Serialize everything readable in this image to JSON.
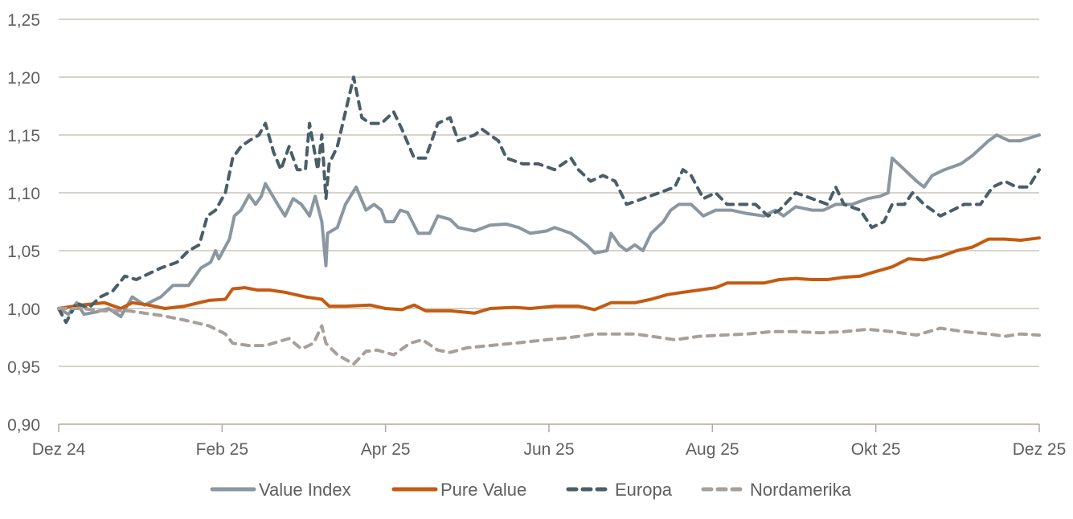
{
  "chart_data": {
    "type": "line",
    "title": "",
    "xlabel": "",
    "ylabel": "",
    "x_unit": "months since Dez 24",
    "xlim": [
      0,
      12
    ],
    "ylim": [
      0.9,
      1.25
    ],
    "y_ticks": [
      "0,90",
      "0,95",
      "1,00",
      "1,05",
      "1,10",
      "1,15",
      "1,20",
      "1,25"
    ],
    "y_tick_values": [
      0.9,
      0.95,
      1.0,
      1.05,
      1.1,
      1.15,
      1.2,
      1.25
    ],
    "x_ticks": [
      "Dez 24",
      "Feb 25",
      "Apr 25",
      "Jun 25",
      "Aug 25",
      "Okt 25",
      "Dez 25"
    ],
    "x_tick_values": [
      0,
      2,
      4,
      6,
      8,
      10,
      12
    ],
    "grid": true,
    "legend_position": "bottom-center",
    "series": [
      {
        "name": "Value Index",
        "color": "#8a97a1",
        "dash": false,
        "x": [
          0,
          0.12,
          0.22,
          0.31,
          0.46,
          0.61,
          0.76,
          0.9,
          1.05,
          1.25,
          1.4,
          1.59,
          1.74,
          1.86,
          1.92,
          1.96,
          2.09,
          2.15,
          2.23,
          2.33,
          2.41,
          2.48,
          2.53,
          2.68,
          2.77,
          2.87,
          2.97,
          3.07,
          3.14,
          3.22,
          3.27,
          3.29,
          3.41,
          3.51,
          3.64,
          3.76,
          3.86,
          3.95,
          4.0,
          4.1,
          4.18,
          4.27,
          4.4,
          4.54,
          4.64,
          4.79,
          4.89,
          5.09,
          5.28,
          5.48,
          5.63,
          5.77,
          5.97,
          6.07,
          6.27,
          6.46,
          6.56,
          6.71,
          6.76,
          6.86,
          6.95,
          7.05,
          7.15,
          7.25,
          7.4,
          7.49,
          7.59,
          7.74,
          7.89,
          8.04,
          8.23,
          8.43,
          8.63,
          8.77,
          8.87,
          9.02,
          9.22,
          9.36,
          9.51,
          9.71,
          9.9,
          10.05,
          10.15,
          10.2,
          10.35,
          10.5,
          10.59,
          10.69,
          10.84,
          11.04,
          11.18,
          11.38,
          11.48,
          11.63,
          11.77,
          12
        ],
        "y": [
          1.0,
          0.995,
          1.005,
          0.995,
          0.997,
          1.0,
          0.993,
          1.01,
          1.003,
          1.01,
          1.02,
          1.02,
          1.035,
          1.04,
          1.05,
          1.043,
          1.06,
          1.08,
          1.085,
          1.098,
          1.09,
          1.097,
          1.108,
          1.09,
          1.08,
          1.095,
          1.09,
          1.08,
          1.097,
          1.075,
          1.037,
          1.065,
          1.07,
          1.09,
          1.105,
          1.085,
          1.09,
          1.085,
          1.075,
          1.075,
          1.085,
          1.083,
          1.065,
          1.065,
          1.08,
          1.077,
          1.07,
          1.067,
          1.072,
          1.073,
          1.07,
          1.065,
          1.067,
          1.07,
          1.065,
          1.055,
          1.048,
          1.05,
          1.065,
          1.055,
          1.05,
          1.055,
          1.05,
          1.065,
          1.075,
          1.085,
          1.09,
          1.09,
          1.08,
          1.085,
          1.085,
          1.082,
          1.08,
          1.085,
          1.08,
          1.088,
          1.085,
          1.085,
          1.09,
          1.09,
          1.095,
          1.097,
          1.1,
          1.13,
          1.12,
          1.11,
          1.105,
          1.115,
          1.12,
          1.125,
          1.132,
          1.145,
          1.15,
          1.145,
          1.145,
          1.15
        ]
      },
      {
        "name": "Pure Value",
        "color": "#c55a11",
        "dash": false,
        "x": [
          0,
          0.27,
          0.56,
          0.76,
          0.9,
          1.1,
          1.3,
          1.54,
          1.84,
          2.04,
          2.13,
          2.28,
          2.43,
          2.58,
          2.77,
          3.02,
          3.22,
          3.31,
          3.51,
          3.81,
          4.0,
          4.2,
          4.35,
          4.49,
          4.79,
          5.09,
          5.28,
          5.58,
          5.77,
          6.07,
          6.36,
          6.56,
          6.76,
          7.05,
          7.25,
          7.45,
          7.64,
          7.84,
          8.04,
          8.18,
          8.43,
          8.63,
          8.82,
          9.02,
          9.22,
          9.41,
          9.61,
          9.81,
          10.0,
          10.2,
          10.4,
          10.59,
          10.79,
          10.99,
          11.18,
          11.38,
          11.58,
          11.77,
          12
        ],
        "y": [
          1.0,
          1.003,
          1.005,
          1.0,
          1.005,
          1.003,
          1.0,
          1.002,
          1.007,
          1.008,
          1.017,
          1.018,
          1.016,
          1.016,
          1.014,
          1.01,
          1.008,
          1.002,
          1.002,
          1.003,
          1.0,
          0.999,
          1.003,
          0.998,
          0.998,
          0.996,
          1.0,
          1.001,
          1.0,
          1.002,
          1.002,
          0.999,
          1.005,
          1.005,
          1.008,
          1.012,
          1.014,
          1.016,
          1.018,
          1.022,
          1.022,
          1.022,
          1.025,
          1.026,
          1.025,
          1.025,
          1.027,
          1.028,
          1.032,
          1.036,
          1.043,
          1.042,
          1.045,
          1.05,
          1.053,
          1.06,
          1.06,
          1.059,
          1.061
        ]
      },
      {
        "name": "Europa",
        "color": "#4a5e68",
        "dash": true,
        "x": [
          0,
          0.09,
          0.22,
          0.36,
          0.51,
          0.66,
          0.81,
          0.95,
          1.1,
          1.25,
          1.45,
          1.59,
          1.72,
          1.82,
          1.92,
          2.04,
          2.13,
          2.23,
          2.33,
          2.45,
          2.53,
          2.63,
          2.72,
          2.82,
          2.92,
          3.02,
          3.07,
          3.17,
          3.22,
          3.27,
          3.31,
          3.41,
          3.51,
          3.61,
          3.71,
          3.81,
          3.95,
          4.1,
          4.2,
          4.35,
          4.49,
          4.64,
          4.79,
          4.89,
          5.09,
          5.18,
          5.38,
          5.48,
          5.68,
          5.87,
          6.07,
          6.27,
          6.36,
          6.51,
          6.66,
          6.81,
          6.95,
          7.15,
          7.35,
          7.54,
          7.64,
          7.74,
          7.89,
          8.04,
          8.18,
          8.33,
          8.53,
          8.68,
          8.82,
          9.02,
          9.22,
          9.41,
          9.51,
          9.61,
          9.81,
          9.95,
          10.1,
          10.2,
          10.35,
          10.45,
          10.59,
          10.79,
          10.94,
          11.08,
          11.28,
          11.43,
          11.58,
          11.72,
          11.87,
          12
        ],
        "y": [
          1.0,
          0.988,
          1.005,
          1.0,
          1.01,
          1.015,
          1.028,
          1.025,
          1.03,
          1.035,
          1.04,
          1.05,
          1.055,
          1.08,
          1.085,
          1.1,
          1.13,
          1.14,
          1.145,
          1.15,
          1.16,
          1.135,
          1.12,
          1.14,
          1.12,
          1.12,
          1.16,
          1.12,
          1.15,
          1.095,
          1.125,
          1.14,
          1.17,
          1.2,
          1.165,
          1.16,
          1.16,
          1.17,
          1.155,
          1.13,
          1.13,
          1.16,
          1.165,
          1.145,
          1.15,
          1.155,
          1.145,
          1.13,
          1.125,
          1.125,
          1.12,
          1.13,
          1.12,
          1.11,
          1.115,
          1.11,
          1.09,
          1.095,
          1.1,
          1.105,
          1.12,
          1.115,
          1.095,
          1.1,
          1.09,
          1.09,
          1.09,
          1.08,
          1.085,
          1.1,
          1.095,
          1.09,
          1.105,
          1.09,
          1.085,
          1.07,
          1.075,
          1.09,
          1.09,
          1.1,
          1.09,
          1.08,
          1.085,
          1.09,
          1.09,
          1.105,
          1.11,
          1.105,
          1.105,
          1.12
        ]
      },
      {
        "name": "Nordamerika",
        "color": "#a89f9a",
        "dash": true,
        "x": [
          0,
          0.27,
          0.56,
          0.86,
          1.05,
          1.25,
          1.54,
          1.84,
          2.04,
          2.13,
          2.33,
          2.53,
          2.72,
          2.82,
          2.97,
          3.12,
          3.22,
          3.27,
          3.41,
          3.61,
          3.76,
          3.9,
          4.1,
          4.3,
          4.45,
          4.64,
          4.79,
          4.99,
          5.28,
          5.58,
          5.97,
          6.27,
          6.56,
          6.86,
          7.05,
          7.35,
          7.54,
          7.84,
          8.13,
          8.43,
          8.72,
          9.02,
          9.31,
          9.61,
          9.9,
          10.2,
          10.5,
          10.79,
          11.08,
          11.38,
          11.58,
          11.77,
          12
        ],
        "y": [
          1.0,
          1.0,
          0.998,
          0.998,
          0.996,
          0.994,
          0.99,
          0.985,
          0.978,
          0.97,
          0.968,
          0.968,
          0.972,
          0.974,
          0.965,
          0.97,
          0.985,
          0.97,
          0.96,
          0.952,
          0.963,
          0.964,
          0.96,
          0.97,
          0.973,
          0.964,
          0.962,
          0.966,
          0.968,
          0.97,
          0.973,
          0.975,
          0.978,
          0.978,
          0.978,
          0.975,
          0.973,
          0.976,
          0.977,
          0.978,
          0.98,
          0.98,
          0.979,
          0.98,
          0.982,
          0.98,
          0.977,
          0.983,
          0.98,
          0.978,
          0.976,
          0.978,
          0.977
        ]
      }
    ]
  },
  "colors": {
    "grid": "#c9c5b9",
    "axis": "#b0ab9f"
  }
}
